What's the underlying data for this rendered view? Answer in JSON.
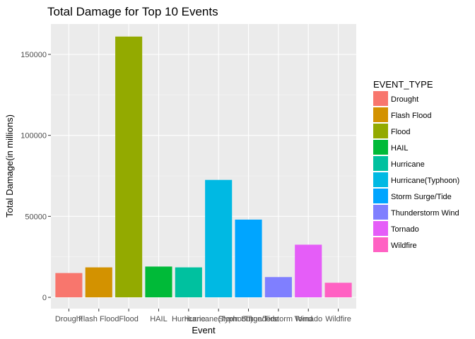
{
  "chart_data": {
    "type": "bar",
    "title": "Total Damage for Top 10 Events",
    "xlabel": "Event",
    "ylabel": "Total Damage(in millions)",
    "ylim": [
      0,
      170000
    ],
    "yticks": [
      0,
      50000,
      100000,
      150000
    ],
    "ytick_labels": [
      "0",
      "50000",
      "100000",
      "150000"
    ],
    "grid": true,
    "legend_position": "right",
    "legend_title": "EVENT_TYPE",
    "categories": [
      "Drought",
      "Flash Flood",
      "Flood",
      "HAIL",
      "Hurricane",
      "Hurricane(Typhoon)",
      "Storm Surge/Tide",
      "Thunderstorm Wind",
      "Tornado",
      "Wildfire"
    ],
    "values": [
      15000,
      18500,
      161000,
      19000,
      18500,
      72500,
      48000,
      12500,
      32500,
      9000
    ],
    "colors": [
      "#F8766D",
      "#D39200",
      "#93AA00",
      "#00BA38",
      "#00C19F",
      "#00B9E3",
      "#00A5FF",
      "#7F7FFF",
      "#E55DF8",
      "#FF61C3"
    ]
  }
}
